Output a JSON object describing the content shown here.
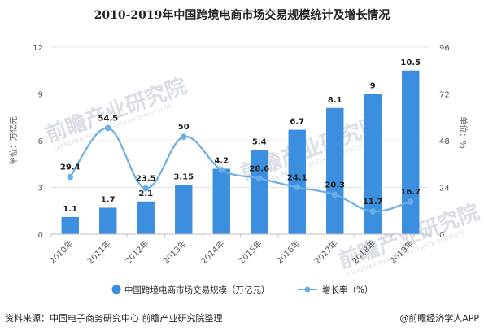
{
  "title": "2010-2019年中国跨境电商市场交易规模统计及增长情况",
  "footer": {
    "source": "资料来源：中国电子商务研究中心 前瞻产业研究院整理",
    "brand": "@前瞻经济学人APP"
  },
  "watermark": {
    "text": "前瞻产业研究院",
    "sub": "QIANZHAN INDUSTRY RESEARCH INSTITUTE"
  },
  "colors": {
    "bar": "#3b8fde",
    "line": "#6aaee5",
    "grid": "#e6e6e6"
  },
  "chart_data": {
    "type": "bar",
    "title": "2010-2019年中国跨境电商市场交易规模统计及增长情况",
    "categories": [
      "2010年",
      "2011年",
      "2012年",
      "2013年",
      "2014年",
      "2015年",
      "2016年",
      "2017年",
      "2018年",
      "2019年"
    ],
    "series": [
      {
        "name": "中国跨境电商市场交易规模（万亿元）",
        "type": "bar",
        "axis": "left",
        "values": [
          1.1,
          1.7,
          2.1,
          3.15,
          4.2,
          5.4,
          6.7,
          8.1,
          9,
          10.5
        ],
        "labels": [
          "1.1",
          "1.7",
          "2.1",
          "3.15",
          "4.2",
          "5.4",
          "6.7",
          "8.1",
          "9",
          "10.5"
        ]
      },
      {
        "name": "增长率（%）",
        "type": "line",
        "axis": "right",
        "values": [
          29.4,
          54.5,
          23.5,
          50,
          33,
          28.6,
          24.1,
          20.3,
          11.7,
          16.7
        ],
        "labels": [
          "29.4",
          "54.5",
          "23.5",
          "50",
          "",
          "28.6",
          "24.1",
          "20.3",
          "11.7",
          "16.7"
        ]
      }
    ],
    "ylabel": "单位：万亿元",
    "y2label": "单位：%",
    "ylim": [
      0,
      12
    ],
    "y2lim": [
      0,
      96
    ],
    "yticks": [
      "0",
      "3",
      "6",
      "9",
      "12"
    ],
    "y2ticks": [
      "0",
      "24",
      "48",
      "72",
      "96"
    ],
    "grid": true,
    "legend": "bottom"
  }
}
